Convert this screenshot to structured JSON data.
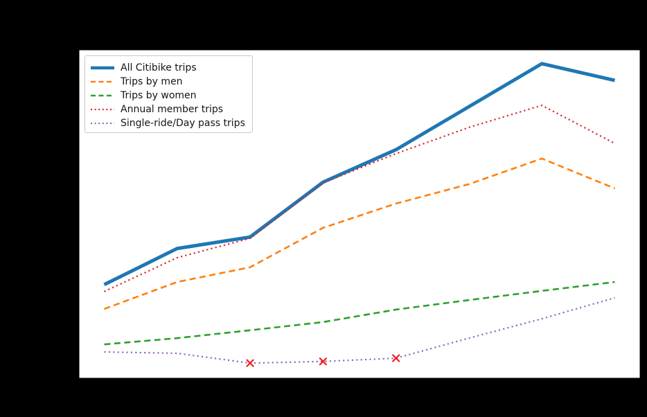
{
  "figure": {
    "background_color": "#000000",
    "plot_background_color": "#ffffff",
    "title_visible": false,
    "axis_tick_labels_visible": false
  },
  "legend": {
    "position": "upper-left",
    "border_color": "#c8c8c8",
    "background_color": "#ffffff"
  },
  "chart_data": {
    "type": "line",
    "title": "",
    "xlabel": "",
    "ylabel": "",
    "x": [
      1,
      2,
      3,
      4,
      5,
      6,
      7,
      8
    ],
    "x_tick_labels": [],
    "y_unit": "relative height, 0-100 of plot area (no axis labels visible in image)",
    "ylim": [
      0,
      100
    ],
    "grid": false,
    "legend_position": "upper-left",
    "series": [
      {
        "name": "All Citibike trips",
        "color": "#1f77b4",
        "line_style": "solid",
        "line_width": 5,
        "values": [
          28.5,
          39.5,
          43.0,
          59.7,
          69.6,
          82.7,
          95.8,
          90.7
        ]
      },
      {
        "name": "Trips by men",
        "color": "#ff7f0e",
        "line_style": "dashed",
        "line_width": 2.6,
        "values": [
          21.1,
          29.3,
          33.8,
          45.8,
          53.2,
          59.1,
          66.9,
          57.8
        ]
      },
      {
        "name": "Trips by women",
        "color": "#2ca02c",
        "line_style": "dashed",
        "line_width": 2.6,
        "values": [
          10.3,
          12.2,
          14.6,
          17.1,
          20.9,
          23.8,
          26.6,
          29.3
        ]
      },
      {
        "name": "Annual member trips",
        "color": "#d62728",
        "line_style": "dotted",
        "line_width": 2.2,
        "values": [
          26.4,
          36.7,
          42.6,
          59.5,
          68.4,
          76.4,
          83.1,
          71.5
        ]
      },
      {
        "name": "Single-ride/Day pass trips",
        "color": "#9467bd",
        "line_style": "dotted",
        "line_width": 2.2,
        "values": [
          8.0,
          7.6,
          4.6,
          5.1,
          6.1,
          12.2,
          18.1,
          24.5
        ],
        "markers": {
          "symbol": "x",
          "color": "#ee2222",
          "indices": [
            2,
            3,
            4
          ]
        }
      }
    ]
  }
}
